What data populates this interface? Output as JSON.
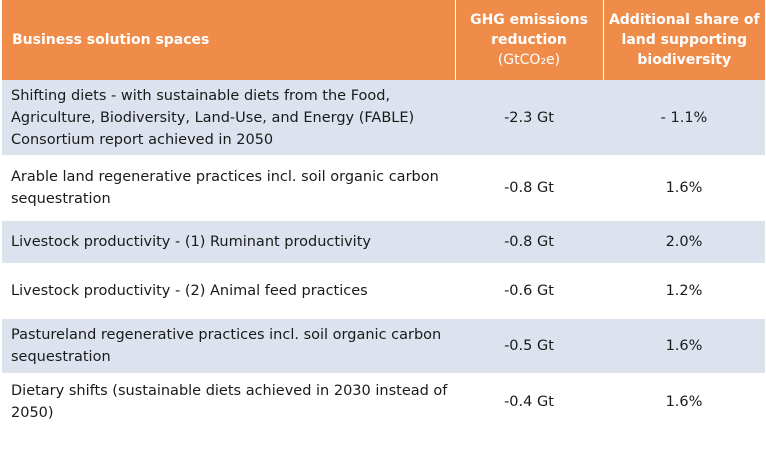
{
  "header": {
    "col1": "Business solution spaces",
    "col2_line1": "GHG emissions",
    "col2_line2": "reduction",
    "col2_unit": "(GtCO₂e)",
    "col3": "Additional share of land supporting biodiversity"
  },
  "colors": {
    "header_bg": "#f08c4a",
    "header_text": "#ffffff",
    "shaded_row": "#dce3ee"
  },
  "rows": [
    {
      "solution": "Shifting diets - with sustainable diets from the Food, Agriculture, Biodiversity, Land-Use, and Energy (FABLE) Consortium report achieved in 2050",
      "ghg": "-2.3 Gt",
      "land": "- 1.1%"
    },
    {
      "solution": "Arable land regenerative practices incl. soil organic carbon sequestration",
      "ghg": "-0.8 Gt",
      "land": "1.6%"
    },
    {
      "solution": "Livestock productivity - (1) Ruminant productivity",
      "ghg": "-0.8 Gt",
      "land": "2.0%"
    },
    {
      "solution": "Livestock productivity - (2) Animal feed practices",
      "ghg": "-0.6 Gt",
      "land": "1.2%"
    },
    {
      "solution": "Pastureland regenerative practices incl. soil organic carbon sequestration",
      "ghg": "-0.5 Gt",
      "land": "1.6%"
    },
    {
      "solution": "Dietary shifts (sustainable diets achieved in 2030 instead of 2050)",
      "ghg": "-0.4 Gt",
      "land": "1.6%"
    }
  ]
}
